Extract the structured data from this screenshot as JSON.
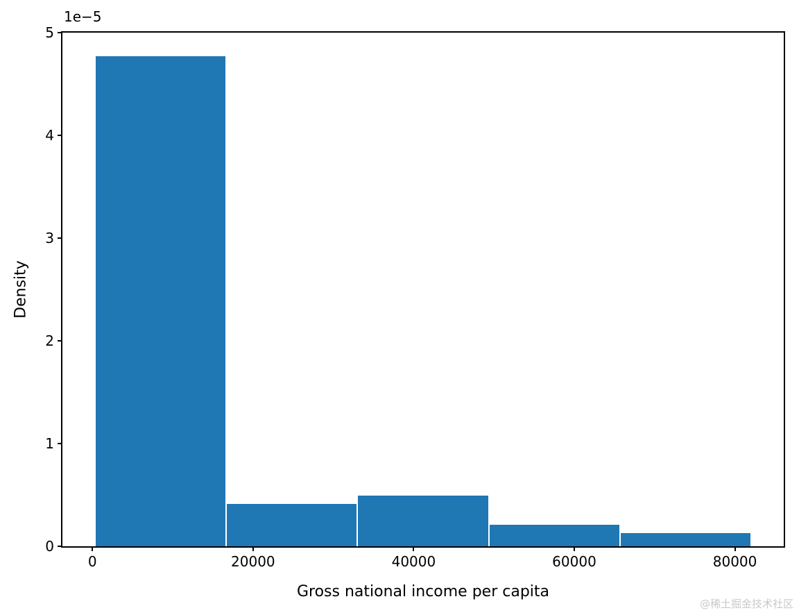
{
  "watermark": {
    "text": "@稀土掘金技术社区"
  },
  "chart_data": {
    "type": "bar",
    "subtype": "histogram",
    "xlabel": "Gross national income per capita",
    "ylabel": "Density",
    "offset_text": "1e−5",
    "y_scale_factor": 1e-05,
    "bar_color": "#1f77b4",
    "grid": false,
    "legend": "none",
    "xlim": [
      -3738,
      86083
    ],
    "ylim_1e5": [
      0,
      5
    ],
    "xticks": [
      {
        "value": 0,
        "label": "0"
      },
      {
        "value": 20000,
        "label": "20000"
      },
      {
        "value": 40000,
        "label": "40000"
      },
      {
        "value": 60000,
        "label": "60000"
      },
      {
        "value": 80000,
        "label": "80000"
      }
    ],
    "yticks": [
      {
        "value_1e5": 0,
        "label": "0"
      },
      {
        "value_1e5": 1,
        "label": "1"
      },
      {
        "value_1e5": 2,
        "label": "2"
      },
      {
        "value_1e5": 3,
        "label": "3"
      },
      {
        "value_1e5": 4,
        "label": "4"
      },
      {
        "value_1e5": 5,
        "label": "5"
      }
    ],
    "bins": [
      {
        "from": 345,
        "to": 16676,
        "density_1e5": 4.77
      },
      {
        "from": 16676,
        "to": 33007,
        "density_1e5": 0.41
      },
      {
        "from": 33007,
        "to": 49338,
        "density_1e5": 0.49
      },
      {
        "from": 49338,
        "to": 65669,
        "density_1e5": 0.21
      },
      {
        "from": 65669,
        "to": 82000,
        "density_1e5": 0.13
      }
    ]
  }
}
